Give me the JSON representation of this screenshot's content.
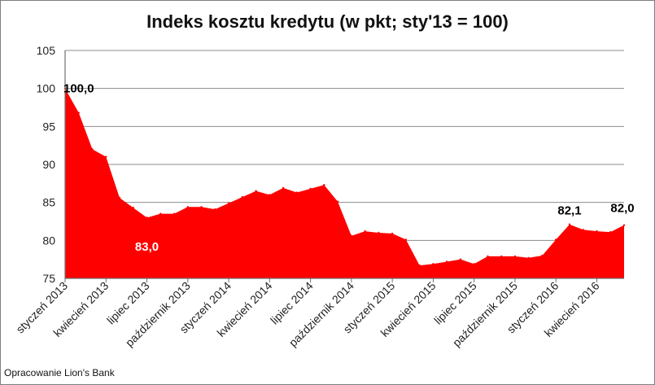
{
  "chart_data": {
    "type": "area",
    "title": "Indeks kosztu kredytu (w pkt; sty'13 = 100)",
    "xlabel": "",
    "ylabel": "",
    "ylim": [
      75,
      105
    ],
    "yticks": [
      75,
      80,
      85,
      90,
      95,
      100,
      105
    ],
    "grid": true,
    "legend": "none",
    "fill_color": "#ff0000",
    "tick_labels_x": [
      "styczeń 2013",
      "kwiecień 2013",
      "lipiec 2013",
      "październik 2013",
      "styczeń 2014",
      "kwiecień 2014",
      "lipiec 2014",
      "październik 2014",
      "styczeń 2015",
      "kwiecień 2015",
      "lipiec 2015",
      "październik 2015",
      "styczeń 2016",
      "kwiecień 2016"
    ],
    "x": [
      "2013-01",
      "2013-02",
      "2013-03",
      "2013-04",
      "2013-05",
      "2013-06",
      "2013-07",
      "2013-08",
      "2013-09",
      "2013-10",
      "2013-11",
      "2013-12",
      "2014-01",
      "2014-02",
      "2014-03",
      "2014-04",
      "2014-05",
      "2014-06",
      "2014-07",
      "2014-08",
      "2014-09",
      "2014-10",
      "2014-11",
      "2014-12",
      "2015-01",
      "2015-02",
      "2015-03",
      "2015-04",
      "2015-05",
      "2015-06",
      "2015-07",
      "2015-08",
      "2015-09",
      "2015-10",
      "2015-11",
      "2015-12",
      "2016-01",
      "2016-02",
      "2016-03",
      "2016-04",
      "2016-05",
      "2016-06"
    ],
    "values": [
      100.0,
      96.8,
      92.0,
      91.0,
      85.6,
      84.3,
      83.0,
      83.5,
      83.5,
      84.4,
      84.4,
      84.1,
      84.9,
      85.7,
      86.5,
      86.0,
      86.9,
      86.3,
      86.8,
      87.3,
      85.1,
      80.6,
      81.2,
      81.0,
      80.9,
      80.1,
      76.7,
      76.9,
      77.2,
      77.5,
      76.9,
      77.9,
      77.9,
      77.9,
      77.7,
      78.0,
      80.1,
      82.1,
      81.4,
      81.2,
      81.1,
      82.0
    ],
    "data_labels": [
      {
        "index": 0,
        "text": "100,0",
        "color": "#000000"
      },
      {
        "index": 6,
        "text": "83,0",
        "color": "#ffffff"
      },
      {
        "index": 37,
        "text": "82,1",
        "color": "#000000"
      },
      {
        "index": 41,
        "text": "82,0",
        "color": "#000000"
      }
    ]
  },
  "source": "Opracowanie Lion's Bank"
}
